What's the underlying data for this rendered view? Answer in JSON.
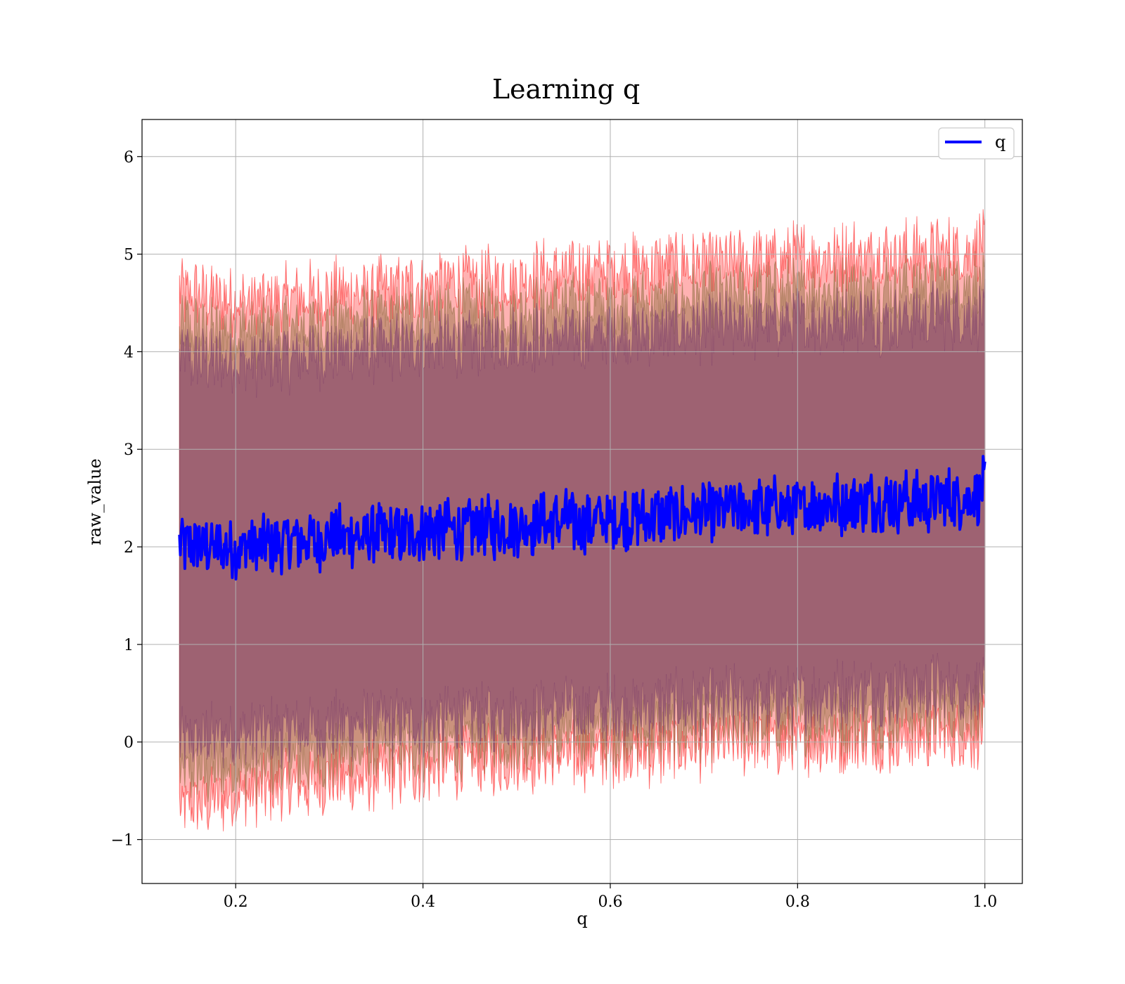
{
  "chart_data": {
    "type": "line",
    "title": "Learning q",
    "xlabel": "q",
    "ylabel": "raw_value",
    "xlim": [
      0.1,
      1.04
    ],
    "ylim": [
      -1.45,
      6.38
    ],
    "x_ticks": [
      {
        "value": 0.2,
        "label": "0.2"
      },
      {
        "value": 0.4,
        "label": "0.4"
      },
      {
        "value": 0.6,
        "label": "0.6"
      },
      {
        "value": 0.8,
        "label": "0.8"
      },
      {
        "value": 1.0,
        "label": "1.0"
      }
    ],
    "y_ticks": [
      {
        "value": -1,
        "label": "−1"
      },
      {
        "value": 0,
        "label": "0"
      },
      {
        "value": 1,
        "label": "1"
      },
      {
        "value": 2,
        "label": "2"
      },
      {
        "value": 3,
        "label": "3"
      },
      {
        "value": 4,
        "label": "4"
      },
      {
        "value": 5,
        "label": "5"
      },
      {
        "value": 6,
        "label": "6"
      }
    ],
    "grid": true,
    "legend": {
      "position": "top-right",
      "entries": [
        "q"
      ]
    },
    "series": [
      {
        "name": "q",
        "color": "#0000ff",
        "x": [
          0.14,
          0.18,
          0.22,
          0.26,
          0.3,
          0.34,
          0.38,
          0.42,
          0.46,
          0.5,
          0.54,
          0.58,
          0.62,
          0.66,
          0.7,
          0.74,
          0.78,
          0.82,
          0.86,
          0.9,
          0.94,
          0.98,
          1.0
        ],
        "y": [
          2.03,
          1.98,
          2.0,
          2.05,
          2.1,
          2.12,
          2.15,
          2.18,
          2.2,
          2.22,
          2.25,
          2.27,
          2.3,
          2.33,
          2.36,
          2.38,
          2.4,
          2.43,
          2.45,
          2.47,
          2.48,
          2.5,
          2.6
        ],
        "noise_amplitude": 0.28
      }
    ],
    "bands": [
      {
        "name": "",
        "color": "#ff0000",
        "opacity": 0.3,
        "lower": [
          -0.7,
          -0.6,
          -0.5,
          -0.45,
          -0.4,
          -0.35,
          -0.3,
          -0.25,
          -0.2,
          -0.18,
          -0.15,
          -0.12,
          -0.1,
          -0.08,
          -0.05,
          -0.03,
          0.0,
          0.0,
          0.02,
          0.03,
          0.05,
          0.07,
          0.1
        ],
        "upper": [
          4.6,
          4.55,
          4.5,
          4.55,
          4.6,
          4.6,
          4.65,
          4.7,
          4.72,
          4.75,
          4.8,
          4.82,
          4.85,
          4.88,
          4.9,
          4.92,
          4.95,
          4.97,
          5.0,
          5.0,
          5.02,
          5.05,
          5.1
        ]
      },
      {
        "name": "",
        "color": "#8c6a3c",
        "opacity": 0.45,
        "lower": [
          -0.35,
          -0.3,
          -0.25,
          -0.2,
          -0.15,
          -0.1,
          -0.05,
          -0.02,
          0.0,
          0.03,
          0.05,
          0.08,
          0.1,
          0.12,
          0.15,
          0.17,
          0.2,
          0.22,
          0.24,
          0.26,
          0.28,
          0.3,
          0.3
        ],
        "upper": [
          4.25,
          4.2,
          4.2,
          4.25,
          4.3,
          4.32,
          4.35,
          4.38,
          4.4,
          4.42,
          4.45,
          4.48,
          4.5,
          4.52,
          4.55,
          4.57,
          4.6,
          4.62,
          4.64,
          4.66,
          4.68,
          4.7,
          4.7
        ]
      },
      {
        "name": "",
        "color": "#7a3a6a",
        "opacity": 0.55,
        "lower": [
          0.0,
          0.05,
          0.1,
          0.12,
          0.15,
          0.18,
          0.2,
          0.22,
          0.25,
          0.27,
          0.3,
          0.32,
          0.35,
          0.37,
          0.4,
          0.42,
          0.45,
          0.47,
          0.5,
          0.52,
          0.54,
          0.55,
          0.6
        ],
        "upper": [
          3.95,
          3.9,
          3.9,
          3.95,
          4.0,
          4.02,
          4.05,
          4.07,
          4.1,
          4.12,
          4.15,
          4.17,
          4.2,
          4.22,
          4.25,
          4.27,
          4.3,
          4.32,
          4.34,
          4.35,
          4.37,
          4.38,
          4.4
        ]
      }
    ]
  }
}
